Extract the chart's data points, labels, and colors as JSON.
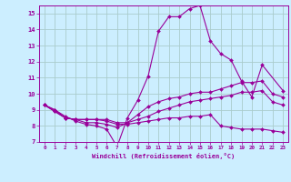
{
  "title": "",
  "xlabel": "Windchill (Refroidissement éolien,°C)",
  "xlim": [
    -0.5,
    23.5
  ],
  "ylim": [
    7,
    15.5
  ],
  "yticks": [
    7,
    8,
    9,
    10,
    11,
    12,
    13,
    14,
    15
  ],
  "xticks": [
    0,
    1,
    2,
    3,
    4,
    5,
    6,
    7,
    8,
    9,
    10,
    11,
    12,
    13,
    14,
    15,
    16,
    17,
    18,
    19,
    20,
    21,
    22,
    23
  ],
  "background_color": "#cceeff",
  "grid_color": "#aacccc",
  "line_color": "#990099",
  "lines": [
    {
      "x": [
        0,
        1,
        2,
        3,
        4,
        5,
        6,
        7,
        8,
        9,
        10,
        11,
        12,
        13,
        14,
        15,
        16,
        17,
        18,
        19,
        20,
        21,
        23
      ],
      "y": [
        9.3,
        9.0,
        8.6,
        8.3,
        8.1,
        8.0,
        7.8,
        6.7,
        8.5,
        9.6,
        11.1,
        13.9,
        14.8,
        14.8,
        15.3,
        15.5,
        13.3,
        12.5,
        12.1,
        10.8,
        9.8,
        11.8,
        10.2
      ]
    },
    {
      "x": [
        0,
        1,
        2,
        3,
        4,
        5,
        6,
        7,
        8,
        9,
        10,
        11,
        12,
        13,
        14,
        15,
        16,
        17,
        18,
        19,
        20,
        21,
        22,
        23
      ],
      "y": [
        9.3,
        9.0,
        8.5,
        8.4,
        8.2,
        8.2,
        8.1,
        7.9,
        8.2,
        8.7,
        9.2,
        9.5,
        9.7,
        9.8,
        10.0,
        10.1,
        10.1,
        10.3,
        10.5,
        10.7,
        10.7,
        10.8,
        10.0,
        9.8
      ]
    },
    {
      "x": [
        0,
        1,
        2,
        3,
        4,
        5,
        6,
        7,
        8,
        9,
        10,
        11,
        12,
        13,
        14,
        15,
        16,
        17,
        18,
        19,
        20,
        21,
        22,
        23
      ],
      "y": [
        9.3,
        8.9,
        8.5,
        8.4,
        8.4,
        8.4,
        8.4,
        8.2,
        8.2,
        8.4,
        8.6,
        8.9,
        9.1,
        9.3,
        9.5,
        9.6,
        9.7,
        9.8,
        9.9,
        10.1,
        10.1,
        10.2,
        9.5,
        9.3
      ]
    },
    {
      "x": [
        0,
        1,
        2,
        3,
        4,
        5,
        6,
        7,
        8,
        9,
        10,
        11,
        12,
        13,
        14,
        15,
        16,
        17,
        18,
        19,
        20,
        21,
        22,
        23
      ],
      "y": [
        9.3,
        8.9,
        8.5,
        8.4,
        8.4,
        8.4,
        8.3,
        8.1,
        8.1,
        8.2,
        8.3,
        8.4,
        8.5,
        8.5,
        8.6,
        8.6,
        8.7,
        8.0,
        7.9,
        7.8,
        7.8,
        7.8,
        7.7,
        7.6
      ]
    }
  ]
}
